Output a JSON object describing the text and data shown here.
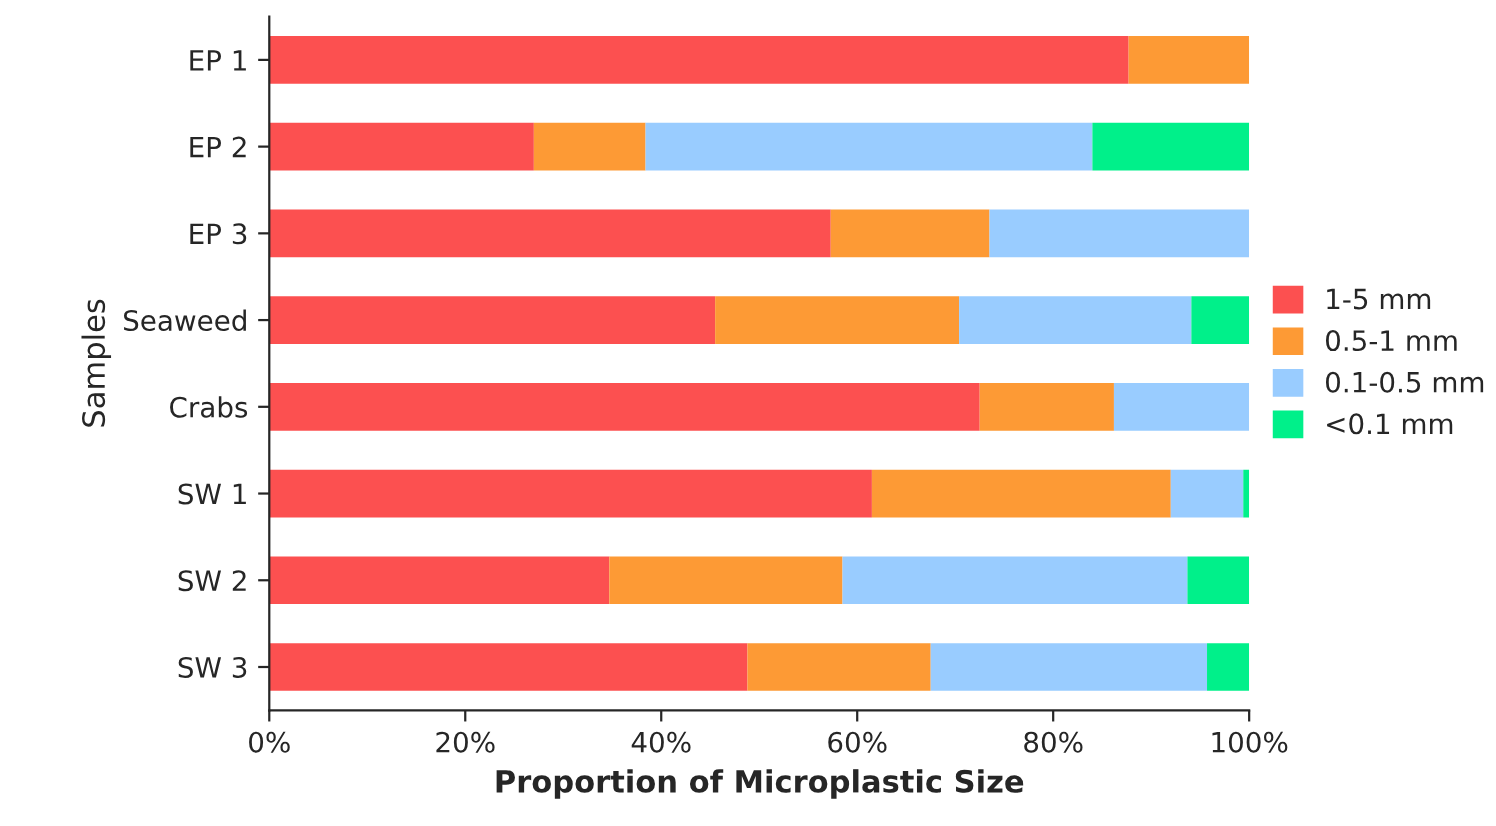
{
  "chart_data": {
    "type": "bar",
    "orientation": "horizontal",
    "stacked": true,
    "xlabel": "Proportion of Microplastic Size",
    "ylabel": "Samples",
    "categories": [
      "EP 1",
      "EP 2",
      "EP 3",
      "Seaweed",
      "Crabs",
      "SW 1",
      "SW 2",
      "SW 3"
    ],
    "series": [
      {
        "name": "1-5 mm",
        "color": "#fc5050",
        "values": [
          87.7,
          27.0,
          57.3,
          45.5,
          72.5,
          61.5,
          34.7,
          48.8
        ]
      },
      {
        "name": "0.5-1 mm",
        "color": "#fd9a35",
        "values": [
          12.3,
          11.4,
          16.2,
          24.9,
          13.7,
          30.5,
          23.8,
          18.7
        ]
      },
      {
        "name": "0.1-0.5 mm",
        "color": "#99ccff",
        "values": [
          null,
          45.6,
          26.5,
          23.7,
          13.8,
          7.4,
          35.2,
          28.2
        ]
      },
      {
        "name": "<0.1 mm",
        "color": "#00f08a",
        "values": [
          null,
          16.0,
          null,
          5.9,
          null,
          0.6,
          6.3,
          4.3
        ]
      }
    ],
    "xlim": [
      0,
      100
    ],
    "xticks": [
      {
        "value": 0,
        "label": "0%"
      },
      {
        "value": 20,
        "label": "20%"
      },
      {
        "value": 40,
        "label": "40%"
      },
      {
        "value": 60,
        "label": "60%"
      },
      {
        "value": 80,
        "label": "80%"
      },
      {
        "value": 100,
        "label": "100%"
      }
    ],
    "grid": false,
    "legend": "right"
  }
}
